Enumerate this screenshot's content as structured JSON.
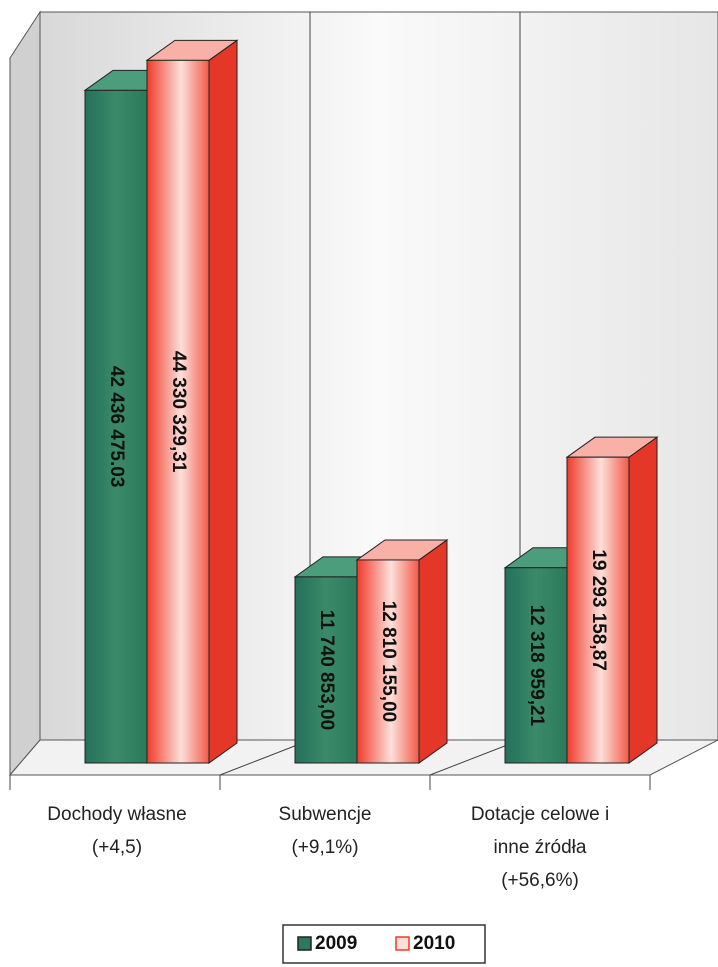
{
  "chart_data": {
    "type": "bar3d",
    "categories": [
      "Dochody własne\n(+4,5)",
      "Subwencje\n(+9,1%)",
      "Dotacje celowe i\ninne źródła\n(+56,6%)"
    ],
    "series": [
      {
        "name": "2009",
        "color": "#2b7a5b",
        "values": [
          42436475.03,
          11740853.0,
          12318959.21
        ],
        "value_labels": [
          "42 436 475.03",
          "11 740 853,00",
          "12 318 959,21"
        ]
      },
      {
        "name": "2010",
        "color": "#f03a2a",
        "values": [
          44330329.31,
          12810155.0,
          19293158.87
        ],
        "value_labels": [
          "44 330 329,31",
          "12 810 155,00",
          "19 293 158,87"
        ]
      }
    ],
    "ylim": [
      0,
      47000000
    ],
    "legend": "bottom"
  }
}
